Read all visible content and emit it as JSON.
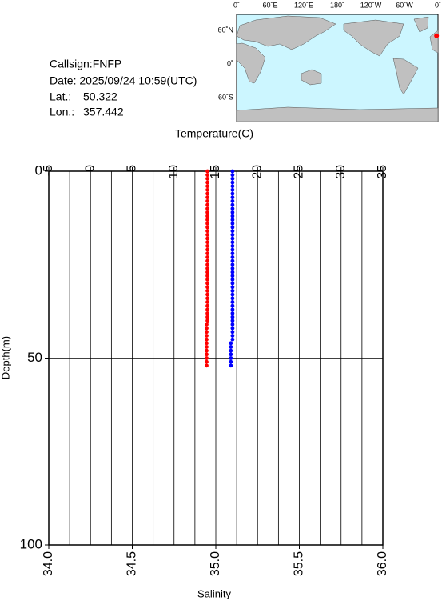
{
  "header": {
    "callsign": "Callsign:FNFP",
    "date": "Date:  2025/09/24 10:59(UTC)",
    "lat_label": "Lat.:",
    "lat": 50.322,
    "lon_label": "Lon.:",
    "lon": 357.442
  },
  "map": {
    "lon_labels": [
      "0˚",
      "60˚E",
      "120˚E",
      "180˚",
      "120˚W",
      "60˚W",
      "0˚"
    ],
    "lat_labels": [
      "60˚N",
      "0˚",
      "60˚S"
    ]
  },
  "chart_data": {
    "type": "profile",
    "x2label": "Temperature(C)",
    "xlabel": "Salinity",
    "ylabel": "Depth(m)",
    "x2lim": [
      -5,
      35
    ],
    "x2ticks": [
      -5,
      0,
      5,
      10,
      15,
      20,
      25,
      30,
      35
    ],
    "x2grid": [
      -5,
      -2.5,
      0,
      2.5,
      5,
      7.5,
      10,
      12.5,
      15,
      17.5,
      20,
      22.5,
      25,
      27.5,
      30,
      32.5,
      35
    ],
    "xlim": [
      34,
      36
    ],
    "xticks": [
      {
        "value": 34,
        "label": "34.0"
      },
      {
        "value": 34.5,
        "label": "34.5"
      },
      {
        "value": 35,
        "label": "35.0"
      },
      {
        "value": 35.5,
        "label": "35.5"
      },
      {
        "value": 36,
        "label": "36.0"
      }
    ],
    "ylim": [
      0,
      100
    ],
    "yticks": [
      0,
      50,
      100
    ],
    "ygrid": [
      50
    ],
    "depth": [
      0,
      1,
      2,
      3,
      4,
      5,
      6,
      7,
      8,
      9,
      10,
      11,
      12,
      13,
      14,
      15,
      16,
      17,
      18,
      19,
      20,
      21,
      22,
      23,
      24,
      25,
      26,
      27,
      28,
      29,
      30,
      31,
      32,
      33,
      34,
      35,
      36,
      37,
      38,
      39,
      40,
      41,
      42,
      43,
      44,
      45,
      46,
      47,
      48,
      49,
      50,
      51,
      52
    ],
    "series": [
      {
        "color": "#ff0000",
        "axis": "x2",
        "values": [
          14,
          14,
          14,
          14,
          14,
          14,
          14,
          14,
          14,
          14,
          14,
          14,
          14,
          14,
          14,
          14,
          14,
          14,
          14,
          14,
          14,
          14,
          14,
          14,
          14,
          14,
          14,
          14,
          14,
          14,
          14,
          14,
          14,
          14,
          14,
          14,
          14,
          14,
          14,
          14,
          14,
          13.9,
          13.9,
          13.9,
          13.9,
          13.9,
          13.9,
          13.9,
          13.9,
          13.9,
          13.9,
          13.9,
          13.9
        ]
      },
      {
        "color": "#0000ff",
        "axis": "x",
        "values": [
          35.1,
          35.1,
          35.1,
          35.1,
          35.1,
          35.1,
          35.1,
          35.1,
          35.1,
          35.1,
          35.1,
          35.1,
          35.1,
          35.1,
          35.1,
          35.1,
          35.1,
          35.1,
          35.1,
          35.1,
          35.1,
          35.1,
          35.1,
          35.1,
          35.1,
          35.1,
          35.1,
          35.1,
          35.1,
          35.1,
          35.1,
          35.1,
          35.1,
          35.1,
          35.1,
          35.1,
          35.1,
          35.1,
          35.1,
          35.1,
          35.1,
          35.1,
          35.1,
          35.1,
          35.1,
          35.1,
          35.09,
          35.09,
          35.09,
          35.09,
          35.09,
          35.09,
          35.09
        ]
      }
    ]
  }
}
